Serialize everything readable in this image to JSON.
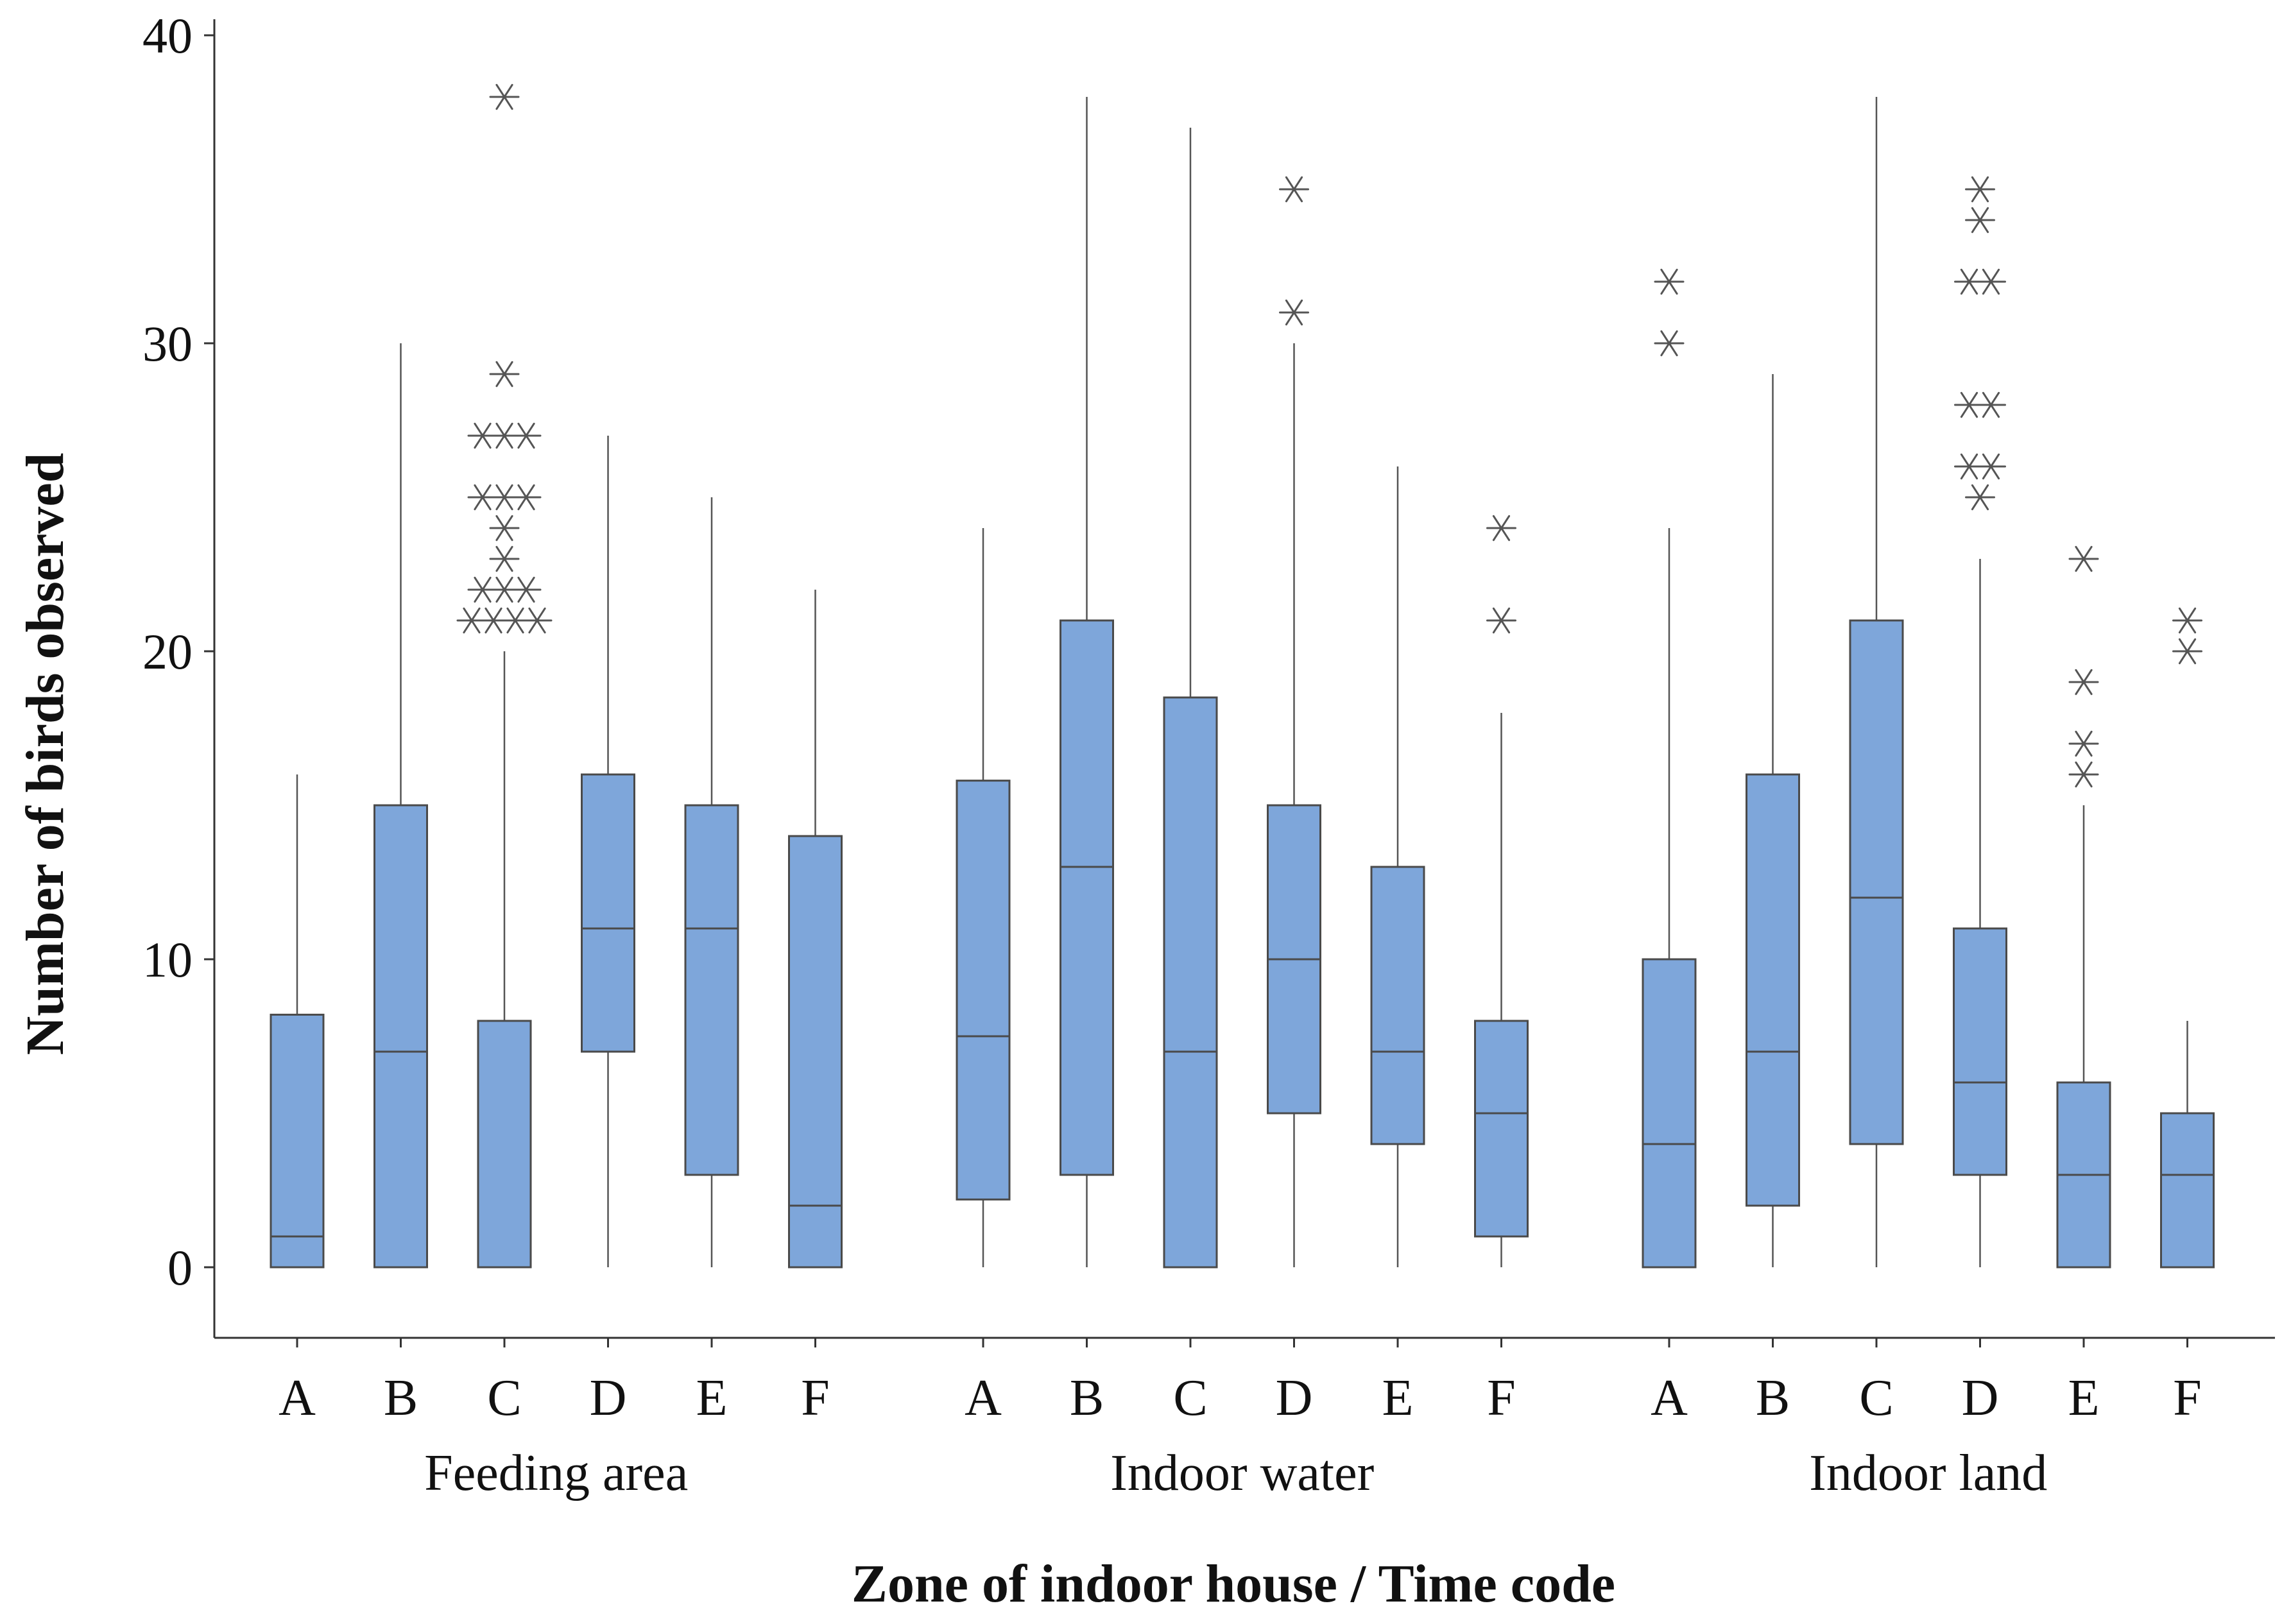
{
  "colors": {
    "box_fill": "#7ea6da",
    "box_stroke": "#4a4a4a",
    "whisker": "#555555",
    "outlier": "#555555",
    "axis": "#333333"
  },
  "chart_data": {
    "type": "boxplot",
    "title": "",
    "xlabel": "Zone of indoor house / Time code",
    "ylabel": "Number of birds observed",
    "ylim": [
      -2.3,
      40.8
    ],
    "yticks": [
      0,
      10,
      20,
      30,
      40
    ],
    "grid": false,
    "legend": "none",
    "outlier_marker": "asterisk",
    "groups": [
      {
        "name": "Feeding area",
        "boxes": [
          {
            "category": "A",
            "q1": 0,
            "median": 1,
            "q3": 8.2,
            "whisker_low": 0,
            "whisker_high": 16,
            "outliers": []
          },
          {
            "category": "B",
            "q1": 0,
            "median": 7,
            "q3": 15,
            "whisker_low": 0,
            "whisker_high": 30,
            "outliers": []
          },
          {
            "category": "C",
            "q1": 0,
            "median": 0,
            "q3": 8,
            "whisker_low": 0,
            "whisker_high": 20,
            "outliers": [
              21,
              21,
              21,
              21,
              22,
              22,
              22,
              23,
              24,
              25,
              25,
              25,
              27,
              27,
              27,
              29,
              38
            ]
          },
          {
            "category": "D",
            "q1": 7,
            "median": 11,
            "q3": 16,
            "whisker_low": 0,
            "whisker_high": 27,
            "outliers": []
          },
          {
            "category": "E",
            "q1": 3,
            "median": 11,
            "q3": 15,
            "whisker_low": 0,
            "whisker_high": 25,
            "outliers": []
          },
          {
            "category": "F",
            "q1": 0,
            "median": 2,
            "q3": 14,
            "whisker_low": 0,
            "whisker_high": 22,
            "outliers": []
          }
        ]
      },
      {
        "name": "Indoor water",
        "boxes": [
          {
            "category": "A",
            "q1": 2.2,
            "median": 7.5,
            "q3": 15.8,
            "whisker_low": 0,
            "whisker_high": 24,
            "outliers": []
          },
          {
            "category": "B",
            "q1": 3,
            "median": 13,
            "q3": 21,
            "whisker_low": 0,
            "whisker_high": 38,
            "outliers": []
          },
          {
            "category": "C",
            "q1": 0,
            "median": 7,
            "q3": 18.5,
            "whisker_low": 0,
            "whisker_high": 37,
            "outliers": []
          },
          {
            "category": "D",
            "q1": 5,
            "median": 10,
            "q3": 15,
            "whisker_low": 0,
            "whisker_high": 30,
            "outliers": [
              31,
              35
            ]
          },
          {
            "category": "E",
            "q1": 4,
            "median": 7,
            "q3": 13,
            "whisker_low": 0,
            "whisker_high": 26,
            "outliers": []
          },
          {
            "category": "F",
            "q1": 1,
            "median": 5,
            "q3": 8,
            "whisker_low": 0,
            "whisker_high": 18,
            "outliers": [
              21,
              24
            ]
          }
        ]
      },
      {
        "name": "Indoor land",
        "boxes": [
          {
            "category": "A",
            "q1": 0,
            "median": 4,
            "q3": 10,
            "whisker_low": 0,
            "whisker_high": 24,
            "outliers": [
              30,
              32
            ]
          },
          {
            "category": "B",
            "q1": 2,
            "median": 7,
            "q3": 16,
            "whisker_low": 0,
            "whisker_high": 29,
            "outliers": []
          },
          {
            "category": "C",
            "q1": 4,
            "median": 12,
            "q3": 21,
            "whisker_low": 0,
            "whisker_high": 38,
            "outliers": []
          },
          {
            "category": "D",
            "q1": 3,
            "median": 6,
            "q3": 11,
            "whisker_low": 0,
            "whisker_high": 23,
            "outliers": [
              25,
              26,
              26,
              28,
              28,
              32,
              32,
              34,
              35
            ]
          },
          {
            "category": "E",
            "q1": 0,
            "median": 3,
            "q3": 6,
            "whisker_low": 0,
            "whisker_high": 15,
            "outliers": [
              16,
              17,
              19,
              23
            ]
          },
          {
            "category": "F",
            "q1": 0,
            "median": 3,
            "q3": 5,
            "whisker_low": 0,
            "whisker_high": 8,
            "outliers": [
              20,
              21
            ]
          }
        ]
      }
    ]
  }
}
